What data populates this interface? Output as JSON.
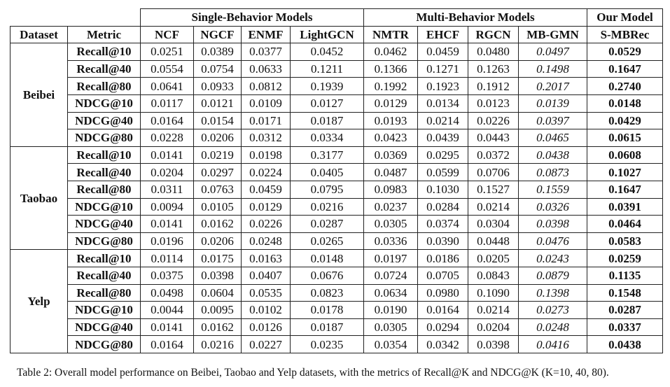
{
  "table": {
    "group_headers": [
      "Single-Behavior Models",
      "Multi-Behavior Models",
      "Our Model"
    ],
    "columns": [
      "Dataset",
      "Metric",
      "NCF",
      "NGCF",
      "ENMF",
      "LightGCN",
      "NMTR",
      "EHCF",
      "RGCN",
      "MB-GMN",
      "S-MBRec"
    ],
    "datasets": [
      {
        "name": "Beibei",
        "rows": [
          {
            "metric": "Recall@10",
            "values": [
              "0.0251",
              "0.0389",
              "0.0377",
              "0.0452",
              "0.0462",
              "0.0459",
              "0.0480",
              "0.0497",
              "0.0529"
            ]
          },
          {
            "metric": "Recall@40",
            "values": [
              "0.0554",
              "0.0754",
              "0.0633",
              "0.1211",
              "0.1366",
              "0.1271",
              "0.1263",
              "0.1498",
              "0.1647"
            ]
          },
          {
            "metric": "Recall@80",
            "values": [
              "0.0641",
              "0.0933",
              "0.0812",
              "0.1939",
              "0.1992",
              "0.1923",
              "0.1912",
              "0.2017",
              "0.2740"
            ]
          },
          {
            "metric": "NDCG@10",
            "values": [
              "0.0117",
              "0.0121",
              "0.0109",
              "0.0127",
              "0.0129",
              "0.0134",
              "0.0123",
              "0.0139",
              "0.0148"
            ]
          },
          {
            "metric": "NDCG@40",
            "values": [
              "0.0164",
              "0.0154",
              "0.0171",
              "0.0187",
              "0.0193",
              "0.0214",
              "0.0226",
              "0.0397",
              "0.0429"
            ]
          },
          {
            "metric": "NDCG@80",
            "values": [
              "0.0228",
              "0.0206",
              "0.0312",
              "0.0334",
              "0.0423",
              "0.0439",
              "0.0443",
              "0.0465",
              "0.0615"
            ]
          }
        ]
      },
      {
        "name": "Taobao",
        "rows": [
          {
            "metric": "Recall@10",
            "values": [
              "0.0141",
              "0.0219",
              "0.0198",
              "0.3177",
              "0.0369",
              "0.0295",
              "0.0372",
              "0.0438",
              "0.0608"
            ]
          },
          {
            "metric": "Recall@40",
            "values": [
              "0.0204",
              "0.0297",
              "0.0224",
              "0.0405",
              "0.0487",
              "0.0599",
              "0.0706",
              "0.0873",
              "0.1027"
            ]
          },
          {
            "metric": "Recall@80",
            "values": [
              "0.0311",
              "0.0763",
              "0.0459",
              "0.0795",
              "0.0983",
              "0.1030",
              "0.1527",
              "0.1559",
              "0.1647"
            ]
          },
          {
            "metric": "NDCG@10",
            "values": [
              "0.0094",
              "0.0105",
              "0.0129",
              "0.0216",
              "0.0237",
              "0.0284",
              "0.0214",
              "0.0326",
              "0.0391"
            ]
          },
          {
            "metric": "NDCG@40",
            "values": [
              "0.0141",
              "0.0162",
              "0.0226",
              "0.0287",
              "0.0305",
              "0.0374",
              "0.0304",
              "0.0398",
              "0.0464"
            ]
          },
          {
            "metric": "NDCG@80",
            "values": [
              "0.0196",
              "0.0206",
              "0.0248",
              "0.0265",
              "0.0336",
              "0.0390",
              "0.0448",
              "0.0476",
              "0.0583"
            ]
          }
        ]
      },
      {
        "name": "Yelp",
        "rows": [
          {
            "metric": "Recall@10",
            "values": [
              "0.0114",
              "0.0175",
              "0.0163",
              "0.0148",
              "0.0197",
              "0.0186",
              "0.0205",
              "0.0243",
              "0.0259"
            ]
          },
          {
            "metric": "Recall@40",
            "values": [
              "0.0375",
              "0.0398",
              "0.0407",
              "0.0676",
              "0.0724",
              "0.0705",
              "0.0843",
              "0.0879",
              "0.1135"
            ]
          },
          {
            "metric": "Recall@80",
            "values": [
              "0.0498",
              "0.0604",
              "0.0535",
              "0.0823",
              "0.0634",
              "0.0980",
              "0.1090",
              "0.1398",
              "0.1548"
            ]
          },
          {
            "metric": "NDCG@10",
            "values": [
              "0.0044",
              "0.0095",
              "0.0102",
              "0.0178",
              "0.0190",
              "0.0164",
              "0.0214",
              "0.0273",
              "0.0287"
            ]
          },
          {
            "metric": "NDCG@40",
            "values": [
              "0.0141",
              "0.0162",
              "0.0126",
              "0.0187",
              "0.0305",
              "0.0294",
              "0.0204",
              "0.0248",
              "0.0337"
            ]
          },
          {
            "metric": "NDCG@80",
            "values": [
              "0.0164",
              "0.0216",
              "0.0227",
              "0.0235",
              "0.0354",
              "0.0342",
              "0.0398",
              "0.0416",
              "0.0438"
            ]
          }
        ]
      }
    ],
    "caption": "Table 2: Overall model performance on Beibei, Taobao and Yelp datasets, with the metrics of Recall@K and NDCG@K (K=10, 40, 80)."
  }
}
